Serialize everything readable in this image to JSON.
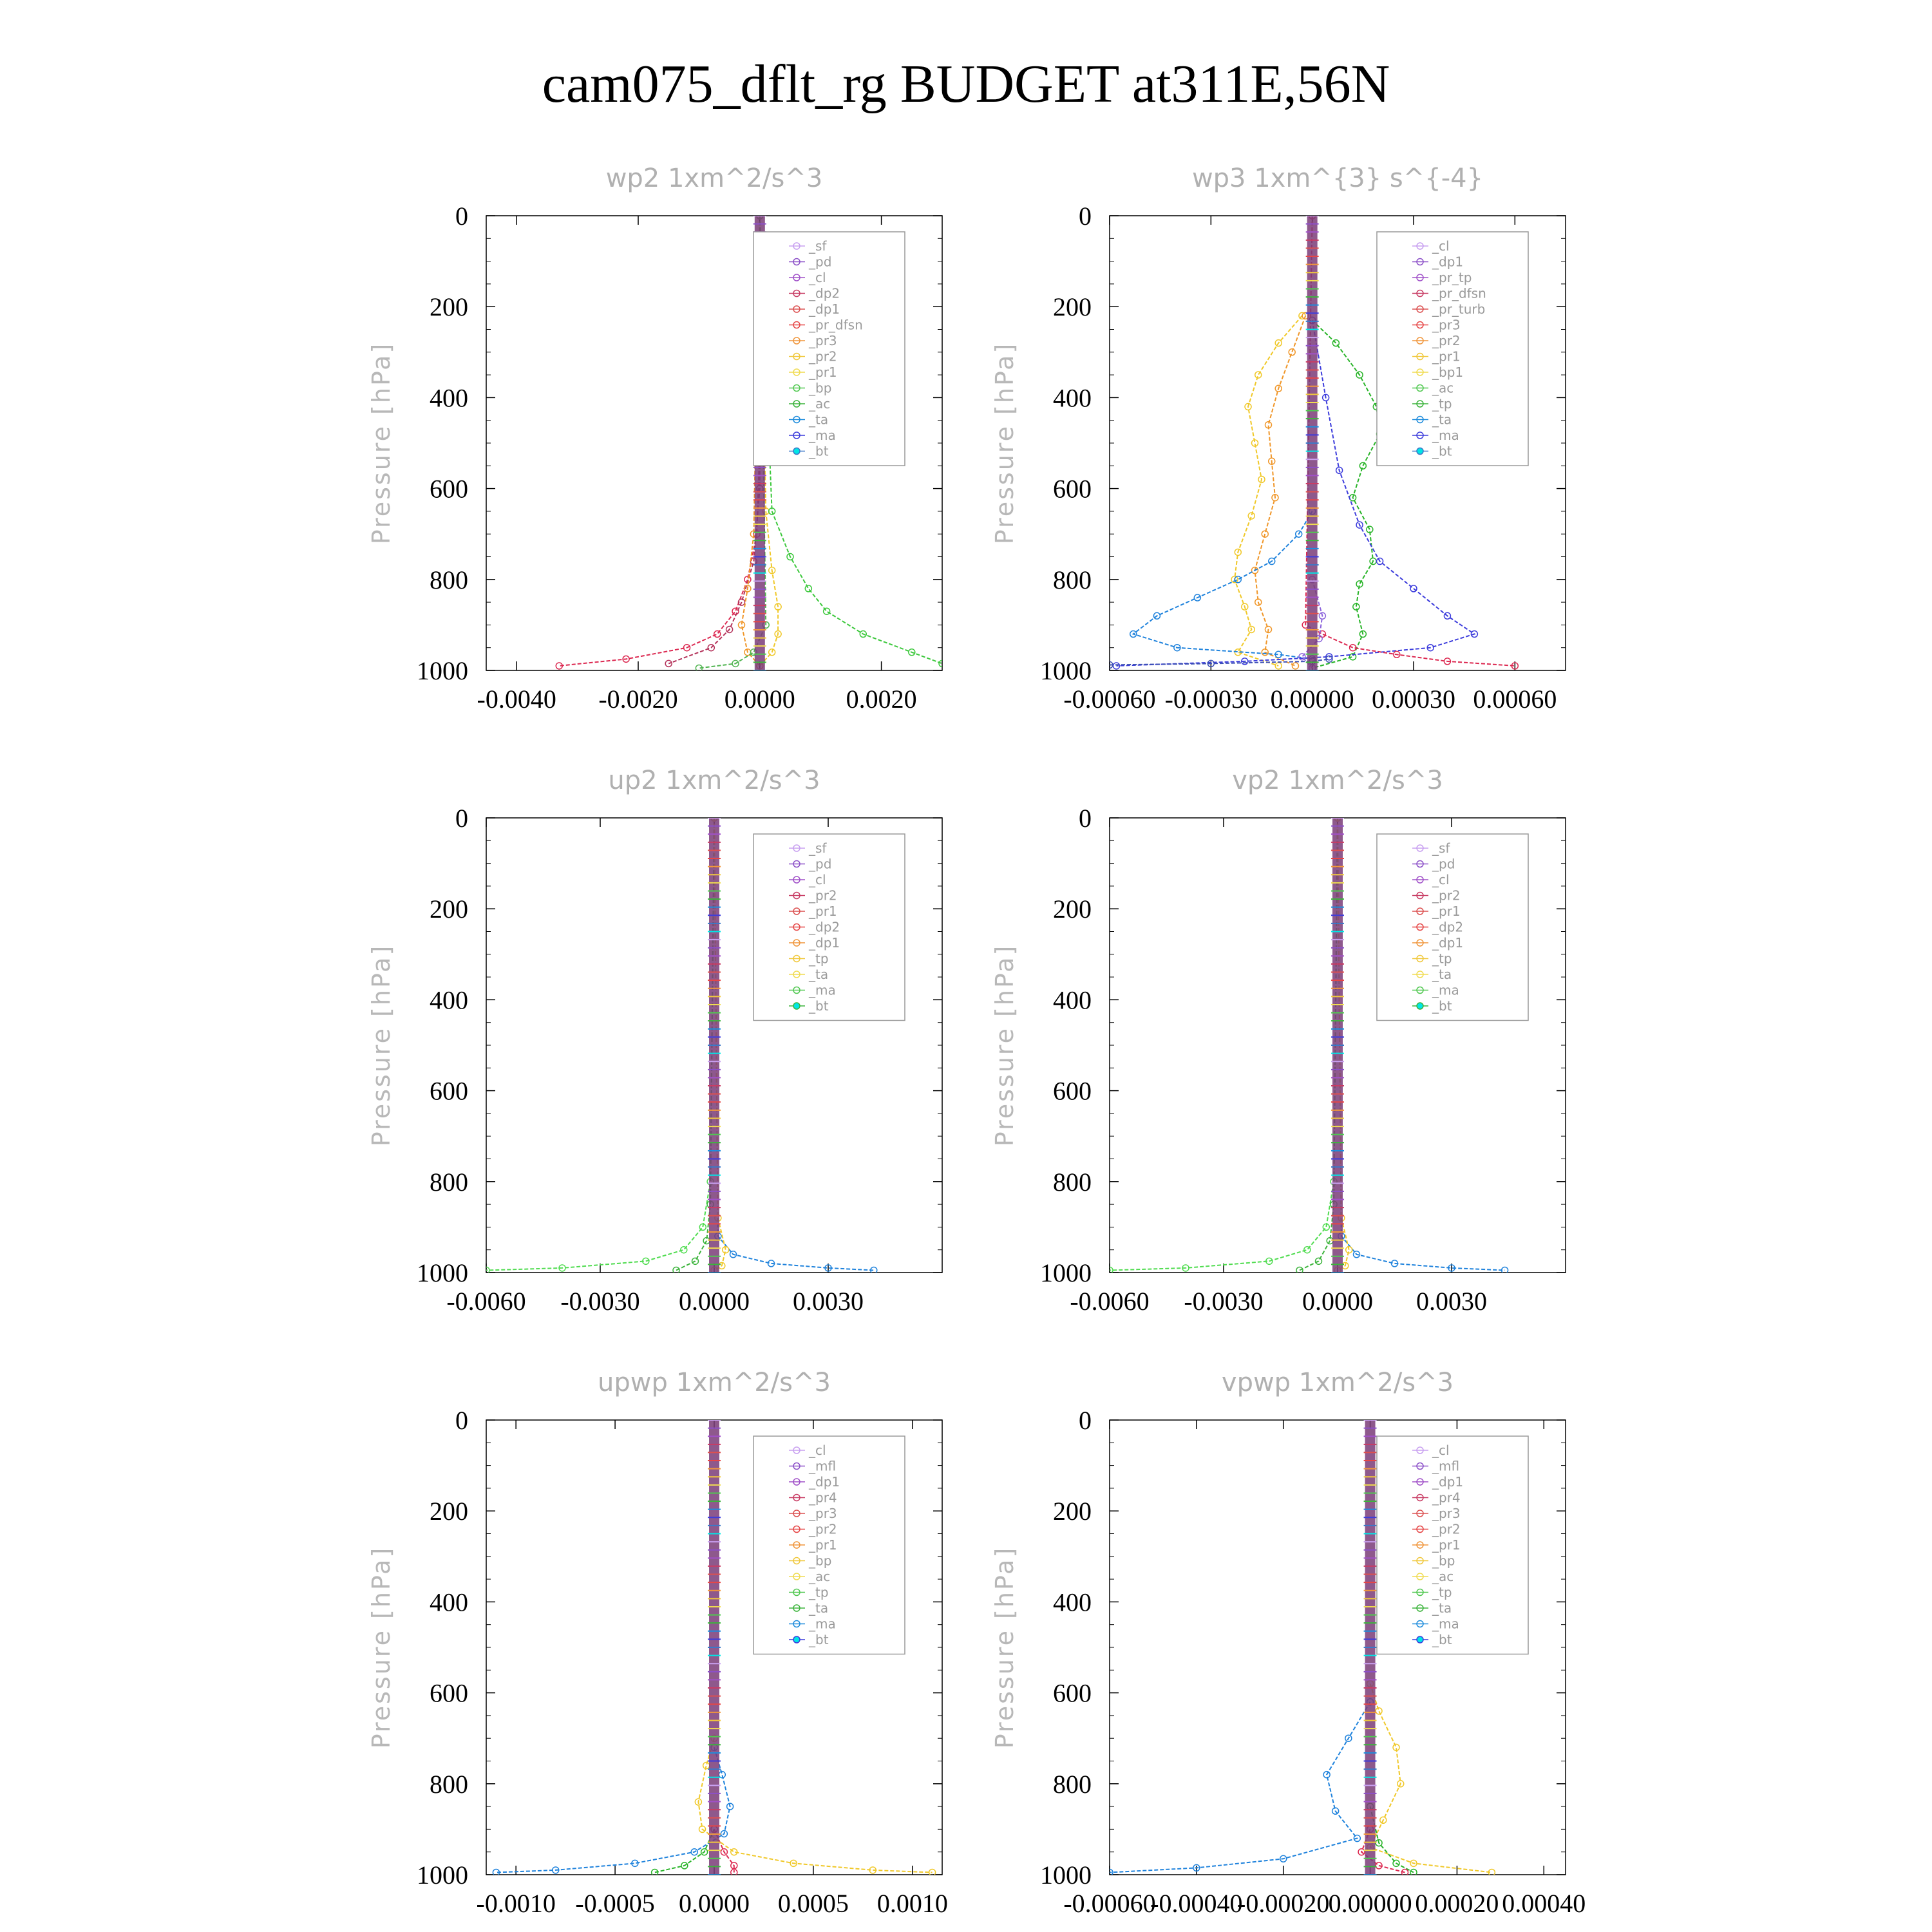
{
  "title": "cam075_dflt_rg  BUDGET at311E,56N",
  "chart_data": [
    {
      "type": "line",
      "title": "wp2  1xm^2/s^3",
      "ylabel": "Pressure [hPa]",
      "xlim": [
        -0.0045,
        0.003
      ],
      "ylim": [
        1000,
        0
      ],
      "xticks": [
        "-0.0040",
        "-0.0020",
        "0.0000",
        "0.0020"
      ],
      "yticks": [
        "0",
        "200",
        "400",
        "600",
        "800",
        "1000"
      ],
      "legend": [
        "_sf",
        "_pd",
        "_cl",
        "_dp2",
        "_dp1",
        "_pr_dfsn",
        "_pr3",
        "_pr2",
        "_pr1",
        "_bp",
        "_ac",
        "_ta",
        "_ma",
        "_bt"
      ],
      "series": [
        {
          "name": "_dp1",
          "color": "#dc2850",
          "x": [
            0,
            0,
            -5e-05,
            -0.0002,
            -0.0004,
            -0.0007,
            -0.0012,
            -0.0022,
            -0.0033
          ],
          "y": [
            0,
            500,
            700,
            800,
            870,
            920,
            950,
            975,
            990
          ]
        },
        {
          "name": "_dp2",
          "color": "#b4325a",
          "x": [
            0,
            0,
            -0.0001,
            -0.0003,
            -0.0005,
            -0.0008,
            -0.0015
          ],
          "y": [
            0,
            600,
            760,
            850,
            910,
            950,
            985
          ]
        },
        {
          "name": "_pr1",
          "color": "#f0c828",
          "x": [
            0,
            0.0001,
            0.0002,
            0.0003,
            0.0003,
            0.0002,
            0
          ],
          "y": [
            0,
            650,
            780,
            860,
            920,
            960,
            990
          ]
        },
        {
          "name": "_pr2",
          "color": "#f09628",
          "x": [
            0,
            -0.0001,
            -0.0002,
            -0.0003,
            -0.0002,
            0
          ],
          "y": [
            0,
            700,
            820,
            900,
            960,
            990
          ]
        },
        {
          "name": "_bp",
          "color": "#3cc83c",
          "x": [
            0,
            0.0002,
            0.0005,
            0.0008,
            0.0011,
            0.0017,
            0.0025,
            0.003
          ],
          "y": [
            0,
            650,
            750,
            820,
            870,
            920,
            960,
            985
          ]
        },
        {
          "name": "_ac",
          "color": "#50b450",
          "x": [
            0,
            0.0001,
            -0.0001,
            -0.0004,
            -0.001
          ],
          "y": [
            0,
            900,
            960,
            985,
            995
          ]
        }
      ]
    },
    {
      "type": "line",
      "title": "wp3  1xm^{3} s^{-4}",
      "ylabel": "Pressure [hPa]",
      "xlim": [
        -0.0006,
        0.00075
      ],
      "ylim": [
        1000,
        0
      ],
      "xticks": [
        "-0.00060",
        "-0.00030",
        "0.00000",
        "0.00030",
        "0.00060"
      ],
      "yticks": [
        "0",
        "200",
        "400",
        "600",
        "800",
        "1000"
      ],
      "legend": [
        "_cl",
        "_dp1",
        "_pr_tp",
        "_pr_dfsn",
        "_pr_turb",
        "_pr3",
        "_pr2",
        "_pr1",
        "_bp1",
        "_ac",
        "_tp",
        "_ta",
        "_ma",
        "_bt"
      ],
      "series": [
        {
          "name": "_pr2",
          "color": "#f0c828",
          "x": [
            -3e-05,
            -0.0001,
            -0.00016,
            -0.00019,
            -0.00017,
            -0.00015,
            -0.00018,
            -0.00022,
            -0.00023,
            -0.0002,
            -0.00018,
            -0.00022,
            -0.0001
          ],
          "y": [
            220,
            280,
            350,
            420,
            500,
            580,
            660,
            740,
            800,
            860,
            910,
            960,
            990
          ]
        },
        {
          "name": "_pr1",
          "color": "#f09628",
          "x": [
            -2e-05,
            -6e-05,
            -0.0001,
            -0.00013,
            -0.00012,
            -0.00011,
            -0.00014,
            -0.00017,
            -0.00016,
            -0.00013,
            -0.00014,
            -5e-05
          ],
          "y": [
            220,
            300,
            380,
            460,
            540,
            620,
            700,
            780,
            850,
            910,
            960,
            990
          ]
        },
        {
          "name": "_bp1",
          "color": "#28b428",
          "x": [
            0,
            7e-05,
            0.00014,
            0.00019,
            0.0002,
            0.00015,
            0.00012,
            0.00017,
            0.00018,
            0.00014,
            0.00013,
            0.00015,
            0.00012,
            0
          ],
          "y": [
            230,
            280,
            350,
            420,
            480,
            550,
            620,
            690,
            760,
            810,
            860,
            920,
            970,
            995
          ]
        },
        {
          "name": "_tp",
          "color": "#1e82dc",
          "x": [
            0,
            -4e-05,
            -0.00012,
            -0.00022,
            -0.00034,
            -0.00046,
            -0.00053,
            -0.0004,
            -0.0001,
            0
          ],
          "y": [
            650,
            700,
            760,
            800,
            840,
            880,
            920,
            950,
            965,
            975
          ]
        },
        {
          "name": "_ta",
          "color": "#3c3cdc",
          "x": [
            0,
            4e-05,
            8e-05,
            0.00014,
            0.0002,
            0.0003,
            0.0004,
            0.00048,
            0.00035,
            5e-05,
            -0.0002,
            -0.00058
          ],
          "y": [
            230,
            400,
            560,
            680,
            760,
            820,
            880,
            920,
            950,
            970,
            980,
            990
          ]
        },
        {
          "name": "_dp1",
          "color": "#dc2850",
          "x": [
            0,
            -2e-05,
            3e-05,
            0.00012,
            0.00025,
            0.0004,
            0.0006
          ],
          "y": [
            0,
            900,
            920,
            950,
            965,
            980,
            990
          ]
        },
        {
          "name": "_cl",
          "color": "#8c64dc",
          "x": [
            0,
            3e-05,
            2e-05,
            -3e-05,
            0
          ],
          "y": [
            800,
            880,
            930,
            970,
            995
          ]
        },
        {
          "name": "_ma",
          "color": "#3c50b4",
          "x": [
            -0.0006,
            -0.0003,
            0,
            5e-05
          ],
          "y": [
            988,
            985,
            980,
            975
          ]
        }
      ]
    },
    {
      "type": "line",
      "title": "up2  1xm^2/s^3",
      "ylabel": "Pressure [hPa]",
      "xlim": [
        -0.006,
        0.006
      ],
      "ylim": [
        1000,
        0
      ],
      "xticks": [
        "-0.0060",
        "-0.0030",
        "0.0000",
        "0.0030"
      ],
      "yticks": [
        "0",
        "200",
        "400",
        "600",
        "800",
        "1000"
      ],
      "legend": [
        "_sf",
        "_pd",
        "_cl",
        "_pr2",
        "_pr1",
        "_dp2",
        "_dp1",
        "_tp",
        "_ta",
        "_ma",
        "_bt"
      ],
      "series": [
        {
          "name": "_dp1",
          "color": "#50dc50",
          "x": [
            0,
            -0.0001,
            -0.0003,
            -0.0008,
            -0.0018,
            -0.004,
            -0.006
          ],
          "y": [
            0,
            800,
            900,
            950,
            975,
            990,
            995
          ]
        },
        {
          "name": "_dp2",
          "color": "#3cb43c",
          "x": [
            0,
            -0.0001,
            -0.0002,
            -0.0005,
            -0.001
          ],
          "y": [
            0,
            850,
            930,
            975,
            995
          ]
        },
        {
          "name": "_tp",
          "color": "#1e82dc",
          "x": [
            0,
            0.0001,
            0.0005,
            0.0015,
            0.003,
            0.0042
          ],
          "y": [
            0,
            920,
            960,
            980,
            990,
            995
          ]
        },
        {
          "name": "_pr1",
          "color": "#f0c828",
          "x": [
            0,
            0.0001,
            0.0003,
            0.0002,
            0
          ],
          "y": [
            0,
            880,
            950,
            985,
            995
          ]
        }
      ]
    },
    {
      "type": "line",
      "title": "vp2  1xm^2/s^3",
      "ylabel": "Pressure [hPa]",
      "xlim": [
        -0.006,
        0.006
      ],
      "ylim": [
        1000,
        0
      ],
      "xticks": [
        "-0.0060",
        "-0.0030",
        "0.0000",
        "0.0030"
      ],
      "yticks": [
        "0",
        "200",
        "400",
        "600",
        "800",
        "1000"
      ],
      "legend": [
        "_sf",
        "_pd",
        "_cl",
        "_pr2",
        "_pr1",
        "_dp2",
        "_dp1",
        "_tp",
        "_ta",
        "_ma",
        "_bt"
      ],
      "series": [
        {
          "name": "_dp1",
          "color": "#50dc50",
          "x": [
            0,
            -0.0001,
            -0.0003,
            -0.0008,
            -0.0018,
            -0.004,
            -0.006
          ],
          "y": [
            0,
            800,
            900,
            950,
            975,
            990,
            995
          ]
        },
        {
          "name": "_dp2",
          "color": "#3cb43c",
          "x": [
            0,
            -0.0001,
            -0.0002,
            -0.0005,
            -0.001
          ],
          "y": [
            0,
            850,
            930,
            975,
            995
          ]
        },
        {
          "name": "_tp",
          "color": "#1e82dc",
          "x": [
            0,
            0.0001,
            0.0005,
            0.0015,
            0.003,
            0.0044
          ],
          "y": [
            0,
            920,
            960,
            980,
            990,
            995
          ]
        },
        {
          "name": "_pr1",
          "color": "#f0c828",
          "x": [
            0,
            0.0001,
            0.0003,
            0.0002,
            0
          ],
          "y": [
            0,
            880,
            950,
            985,
            995
          ]
        }
      ]
    },
    {
      "type": "line",
      "title": "upwp  1xm^2/s^3",
      "ylabel": "Pressure [hPa]",
      "xlim": [
        -0.00115,
        0.00115
      ],
      "ylim": [
        1000,
        0
      ],
      "xticks": [
        "-0.0010",
        "-0.0005",
        "0.0000",
        "0.0005",
        "0.0010"
      ],
      "yticks": [
        "0",
        "200",
        "400",
        "600",
        "800",
        "1000"
      ],
      "legend": [
        "_cl",
        "_mfl",
        "_dp1",
        "_pr4",
        "_pr3",
        "_pr2",
        "_pr1",
        "_bp",
        "_ac",
        "_tp",
        "_ta",
        "_ma",
        "_bt"
      ],
      "series": [
        {
          "name": "_pr1",
          "color": "#f0c828",
          "x": [
            0,
            -4e-05,
            -8e-05,
            -6e-05,
            0.0001,
            0.0004,
            0.0008,
            0.0011
          ],
          "y": [
            700,
            760,
            840,
            900,
            950,
            975,
            990,
            995
          ]
        },
        {
          "name": "_tp",
          "color": "#1e82dc",
          "x": [
            0,
            4e-05,
            8e-05,
            5e-05,
            -0.0001,
            -0.0004,
            -0.0008,
            -0.0011
          ],
          "y": [
            720,
            780,
            850,
            910,
            950,
            975,
            990,
            995
          ]
        },
        {
          "name": "_bp",
          "color": "#28b428",
          "x": [
            0,
            -5e-05,
            -0.00015,
            -0.0003
          ],
          "y": [
            900,
            950,
            980,
            995
          ]
        },
        {
          "name": "_dp1",
          "color": "#dc2850",
          "x": [
            0,
            5e-05,
            0.0001,
            0.0001
          ],
          "y": [
            900,
            950,
            980,
            995
          ]
        }
      ]
    },
    {
      "type": "line",
      "title": "vpwp  1xm^2/s^3",
      "ylabel": "Pressure [hPa]",
      "xlim": [
        -0.0006,
        0.00045
      ],
      "ylim": [
        1000,
        0
      ],
      "xticks": [
        "-0.00060",
        "-0.00040",
        "-0.00020",
        "0.00000",
        "0.00020",
        "0.00040"
      ],
      "yticks": [
        "0",
        "200",
        "400",
        "600",
        "800",
        "1000"
      ],
      "legend": [
        "_cl",
        "_mfl",
        "_dp1",
        "_pr4",
        "_pr3",
        "_pr2",
        "_pr1",
        "_bp",
        "_ac",
        "_tp",
        "_ta",
        "_ma",
        "_bt"
      ],
      "series": [
        {
          "name": "_pr1",
          "color": "#f0c828",
          "x": [
            0,
            2e-05,
            6e-05,
            7e-05,
            3e-05,
            0,
            0.0001,
            0.00028
          ],
          "y": [
            580,
            640,
            720,
            800,
            880,
            940,
            975,
            995
          ]
        },
        {
          "name": "_tp",
          "color": "#1e82dc",
          "x": [
            0,
            -5e-05,
            -0.0001,
            -8e-05,
            -3e-05,
            -0.0002,
            -0.0004,
            -0.0006
          ],
          "y": [
            620,
            700,
            780,
            860,
            920,
            965,
            985,
            995
          ]
        },
        {
          "name": "_bp",
          "color": "#28b428",
          "x": [
            0,
            2e-05,
            6e-05,
            0.0001
          ],
          "y": [
            850,
            930,
            975,
            995
          ]
        },
        {
          "name": "_dp1",
          "color": "#dc2850",
          "x": [
            0,
            -2e-05,
            2e-05,
            8e-05
          ],
          "y": [
            900,
            950,
            980,
            995
          ]
        }
      ]
    }
  ]
}
